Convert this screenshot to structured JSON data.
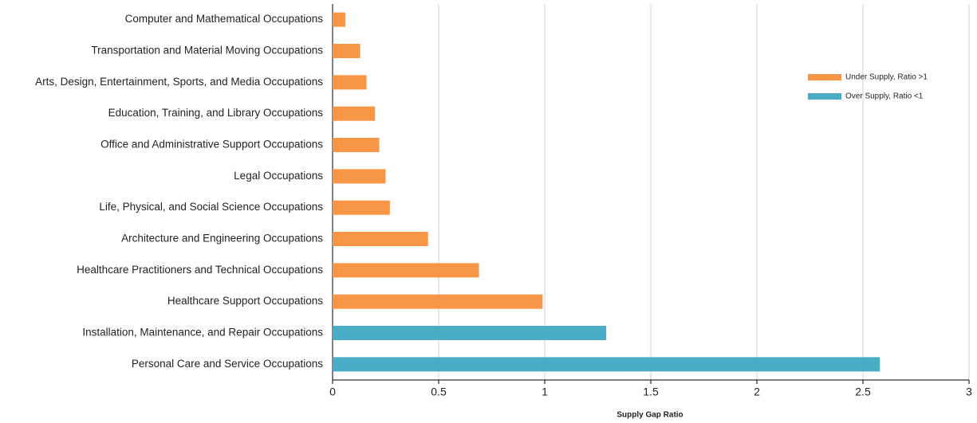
{
  "chart_data": {
    "type": "bar",
    "orientation": "horizontal",
    "x_label": "Supply Gap Ratio",
    "categories": [
      "Computer and Mathematical Occupations",
      "Transportation and Material Moving Occupations",
      "Arts, Design, Entertainment, Sports, and Media Occupations",
      "Education, Training, and Library Occupations",
      "Office and Administrative Support Occupations",
      "Legal Occupations",
      "Life, Physical, and Social Science Occupations",
      "Architecture and Engineering Occupations",
      "Healthcare Practitioners and Technical Occupations",
      "Healthcare Support Occupations",
      "Installation, Maintenance, and Repair Occupations",
      "Personal Care and Service Occupations"
    ],
    "series": [
      {
        "name": "Under Supply, Ratio >1",
        "color": "#f79646",
        "values": [
          0.06,
          0.13,
          0.16,
          0.2,
          0.22,
          0.25,
          0.27,
          0.45,
          0.69,
          0.99,
          null,
          null
        ]
      },
      {
        "name": "Over Supply, Ratio <1",
        "color": "#4bacc6",
        "values": [
          null,
          null,
          null,
          null,
          null,
          null,
          null,
          null,
          null,
          null,
          1.29,
          2.58
        ]
      }
    ],
    "xlim": [
      0,
      3
    ],
    "xticks": [
      0,
      0.5,
      1,
      1.5,
      2,
      2.5,
      3
    ],
    "grid": true,
    "legend": "right"
  }
}
